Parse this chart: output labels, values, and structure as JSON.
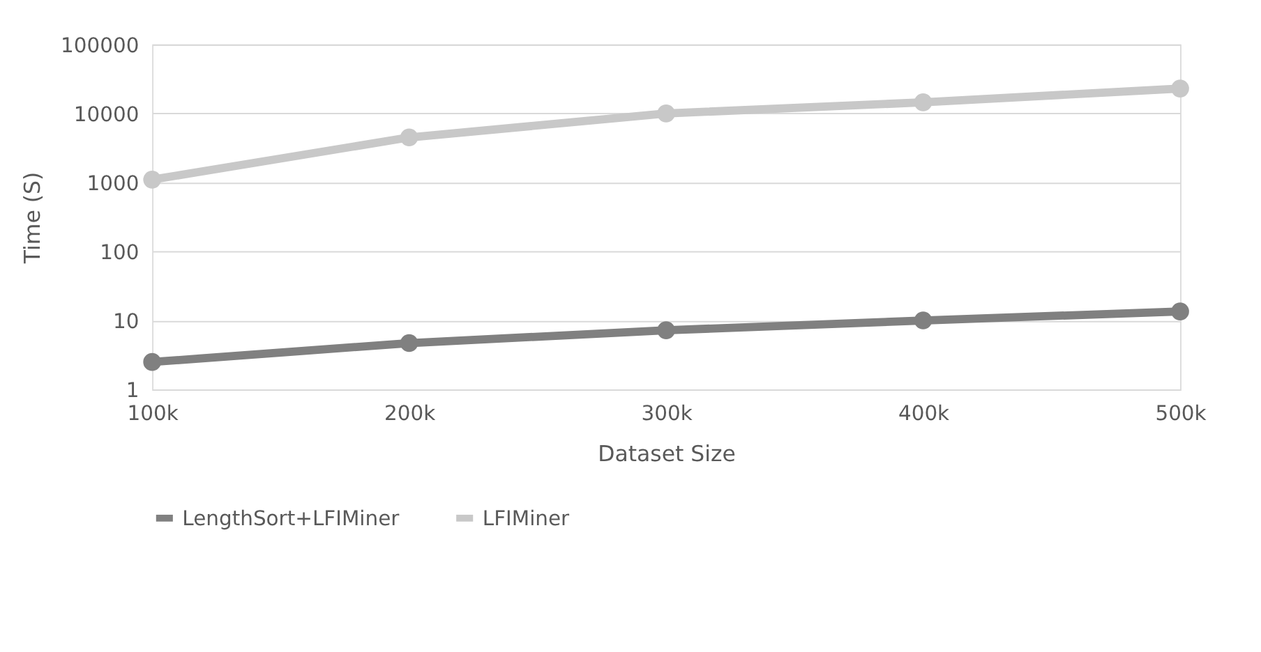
{
  "chart_data": {
    "type": "line",
    "xlabel": "Dataset Size",
    "ylabel": "Time (S)",
    "categories": [
      "100k",
      "200k",
      "300k",
      "400k",
      "500k"
    ],
    "series": [
      {
        "name": "LengthSort+LFIMiner",
        "color": "#808080",
        "values": [
          2.5,
          4.7,
          7.2,
          10,
          13.5
        ]
      },
      {
        "name": "LFIMiner",
        "color": "#c8c8c8",
        "values": [
          1100,
          4500,
          10000,
          14500,
          23000
        ]
      }
    ],
    "log": "y",
    "ylim": [
      1,
      100000
    ],
    "yticks": [
      1,
      10,
      100,
      1000,
      10000,
      100000
    ],
    "grid": "y",
    "legend": "bottom",
    "marker": "circle",
    "line_style": "solid"
  }
}
